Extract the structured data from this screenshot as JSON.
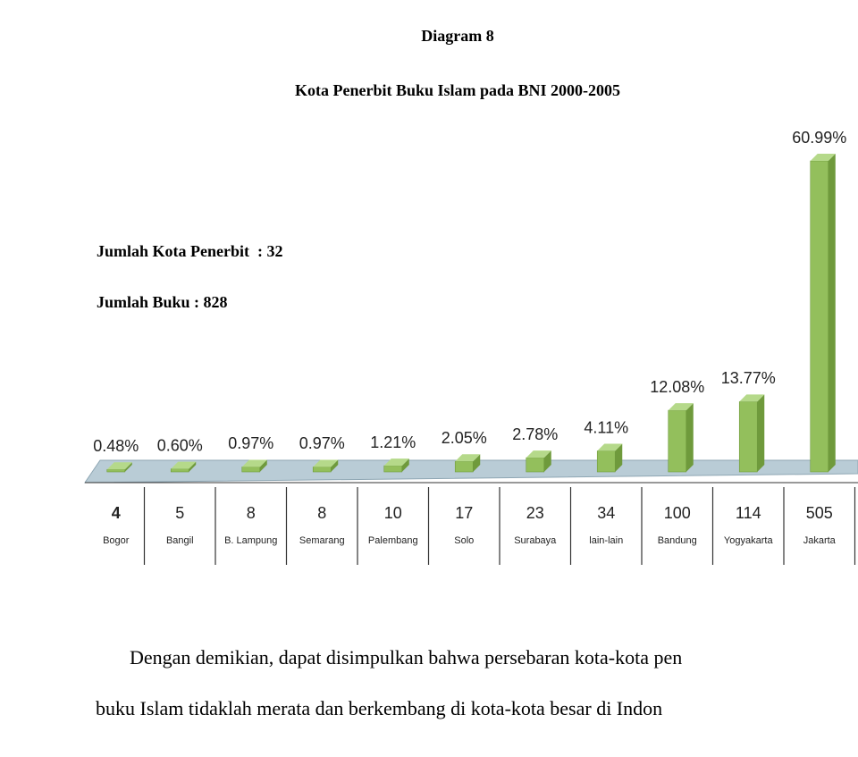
{
  "chart_data": {
    "type": "bar",
    "heading": "Diagram 8",
    "title": "Kota Penerbit Buku Islam pada BNI 2000-2005",
    "annotations": [
      "Jumlah Kota Penerbit  : 32",
      "Jumlah Buku : 828"
    ],
    "categories": [
      "Bogor",
      "Bangil",
      "B. Lampung",
      "Semarang",
      "Palembang",
      "Solo",
      "Surabaya",
      "lain-lain",
      "Bandung",
      "Yogyakarta",
      "Jakarta"
    ],
    "counts": [
      4,
      5,
      8,
      8,
      10,
      17,
      23,
      34,
      100,
      114,
      505
    ],
    "values": [
      0.48,
      0.6,
      0.97,
      0.97,
      1.21,
      2.05,
      2.78,
      4.11,
      12.08,
      13.77,
      60.99
    ],
    "value_labels": [
      "0.48%",
      "0.60%",
      "0.97%",
      "0.97%",
      "1.21%",
      "2.05%",
      "2.78%",
      "4.11%",
      "12.08%",
      "13.77%",
      "60.99%"
    ],
    "color": "#93bf5c"
  },
  "text": [
    "Dengan demikian, dapat disimpulkan bahwa persebaran kota-kota pen",
    "buku Islam tidaklah merata dan berkembang di kota-kota besar di Indon"
  ]
}
